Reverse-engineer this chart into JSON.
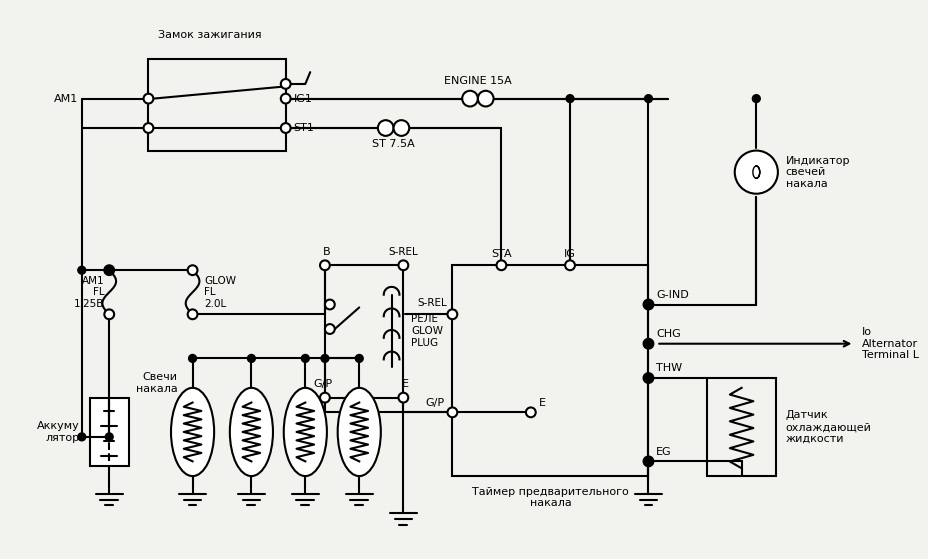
{
  "bg_color": "#f2f2ee",
  "line_color": "#000000",
  "text_color": "#000000",
  "labels": {
    "zamok": "Замок зажигания",
    "engine15a": "ENGINE 15A",
    "st75a": "ST 7.5A",
    "am1_fl": "AM1\nFL\n1.25B",
    "glow_fl": "GLOW\nFL\n2.0L",
    "glow_plug_relay": "РЕЛЕ\nGLOW\nPLUG",
    "b_label": "B",
    "srel_label": "S-REL",
    "gp_label": "G/P",
    "e_label": "E",
    "sta_label": "STA",
    "ig_label": "IG",
    "srel2": "S-REL",
    "gind": "G-IND",
    "chg": "CHG",
    "thw": "THW",
    "eg": "EG",
    "indicator": "Индикатор\nсвечей\nнакала",
    "alternator": "Io\nAlternator\nTerminal L",
    "sensor": "Датчик\nохлаждающей\nжидкости",
    "battery": "Аккуму\nлятор",
    "glow_plugs": "Свечи\nнакала",
    "timer": "Таймер предварительного\nнакала",
    "ig1": "IG1",
    "st1": "ST1",
    "am1": "AM1"
  }
}
